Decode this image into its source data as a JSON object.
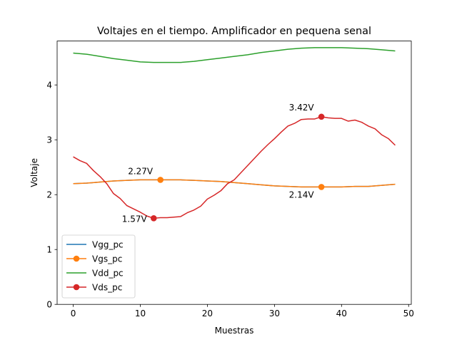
{
  "chart_data": {
    "type": "line",
    "title": "Voltajes en el tiempo. Amplificador en pequena senal",
    "xlabel": "Muestras",
    "ylabel": "Voltaje",
    "xlim": [
      -2.4,
      50.4
    ],
    "ylim": [
      0,
      4.8
    ],
    "xticks": [
      0,
      10,
      20,
      30,
      40,
      50
    ],
    "yticks": [
      0,
      1,
      2,
      3,
      4
    ],
    "grid": false,
    "legend_position": "lower-left",
    "series": [
      {
        "name": "Vgg_pc",
        "color": "#1f77b4",
        "marker": "none",
        "x": [
          0,
          2,
          4,
          6,
          8,
          10,
          12,
          14,
          16,
          18,
          20,
          22,
          24,
          26,
          28,
          30,
          32,
          34,
          36,
          38,
          40,
          42,
          44,
          46,
          48
        ],
        "y": [
          2.2,
          2.21,
          2.23,
          2.25,
          2.26,
          2.27,
          2.27,
          2.27,
          2.27,
          2.26,
          2.25,
          2.24,
          2.22,
          2.2,
          2.18,
          2.16,
          2.15,
          2.14,
          2.14,
          2.14,
          2.14,
          2.15,
          2.15,
          2.17,
          2.19
        ]
      },
      {
        "name": "Vgs_pc",
        "color": "#ff7f0e",
        "marker": "circle",
        "x": [
          0,
          2,
          4,
          6,
          8,
          10,
          12,
          14,
          16,
          18,
          20,
          22,
          24,
          26,
          28,
          30,
          32,
          34,
          36,
          38,
          40,
          42,
          44,
          46,
          48
        ],
        "y": [
          2.2,
          2.21,
          2.23,
          2.25,
          2.26,
          2.27,
          2.27,
          2.27,
          2.27,
          2.26,
          2.25,
          2.24,
          2.22,
          2.2,
          2.18,
          2.16,
          2.15,
          2.14,
          2.14,
          2.14,
          2.14,
          2.15,
          2.15,
          2.17,
          2.19
        ],
        "markers": [
          {
            "x": 13,
            "y": 2.27,
            "label": "2.27V"
          },
          {
            "x": 37,
            "y": 2.14,
            "label": "2.14V"
          }
        ]
      },
      {
        "name": "Vdd_pc",
        "color": "#2ca02c",
        "marker": "none",
        "x": [
          0,
          2,
          4,
          6,
          8,
          10,
          12,
          14,
          16,
          18,
          20,
          22,
          24,
          26,
          28,
          30,
          32,
          34,
          36,
          38,
          40,
          42,
          44,
          46,
          48
        ],
        "y": [
          4.58,
          4.56,
          4.52,
          4.48,
          4.45,
          4.42,
          4.41,
          4.41,
          4.41,
          4.43,
          4.46,
          4.49,
          4.52,
          4.55,
          4.59,
          4.62,
          4.65,
          4.67,
          4.68,
          4.68,
          4.68,
          4.67,
          4.66,
          4.64,
          4.62
        ]
      },
      {
        "name": "Vds_pc",
        "color": "#d62728",
        "marker": "circle",
        "x": [
          0,
          1,
          2,
          3,
          4,
          5,
          6,
          7,
          8,
          9,
          10,
          11,
          12,
          13,
          14,
          15,
          16,
          17,
          18,
          19,
          20,
          21,
          22,
          23,
          24,
          25,
          26,
          27,
          28,
          29,
          30,
          31,
          32,
          33,
          34,
          35,
          36,
          37,
          38,
          39,
          40,
          41,
          42,
          43,
          44,
          45,
          46,
          47,
          48
        ],
        "y": [
          2.69,
          2.62,
          2.57,
          2.44,
          2.33,
          2.2,
          2.02,
          1.93,
          1.8,
          1.74,
          1.68,
          1.61,
          1.57,
          1.58,
          1.58,
          1.59,
          1.6,
          1.67,
          1.72,
          1.79,
          1.92,
          1.99,
          2.07,
          2.2,
          2.27,
          2.4,
          2.53,
          2.66,
          2.79,
          2.91,
          3.02,
          3.14,
          3.25,
          3.3,
          3.37,
          3.38,
          3.38,
          3.42,
          3.4,
          3.39,
          3.39,
          3.34,
          3.36,
          3.32,
          3.25,
          3.2,
          3.09,
          3.02,
          2.9
        ],
        "markers": [
          {
            "x": 12,
            "y": 1.57,
            "label": "1.57V"
          },
          {
            "x": 37,
            "y": 3.42,
            "label": "3.42V"
          }
        ]
      }
    ]
  }
}
